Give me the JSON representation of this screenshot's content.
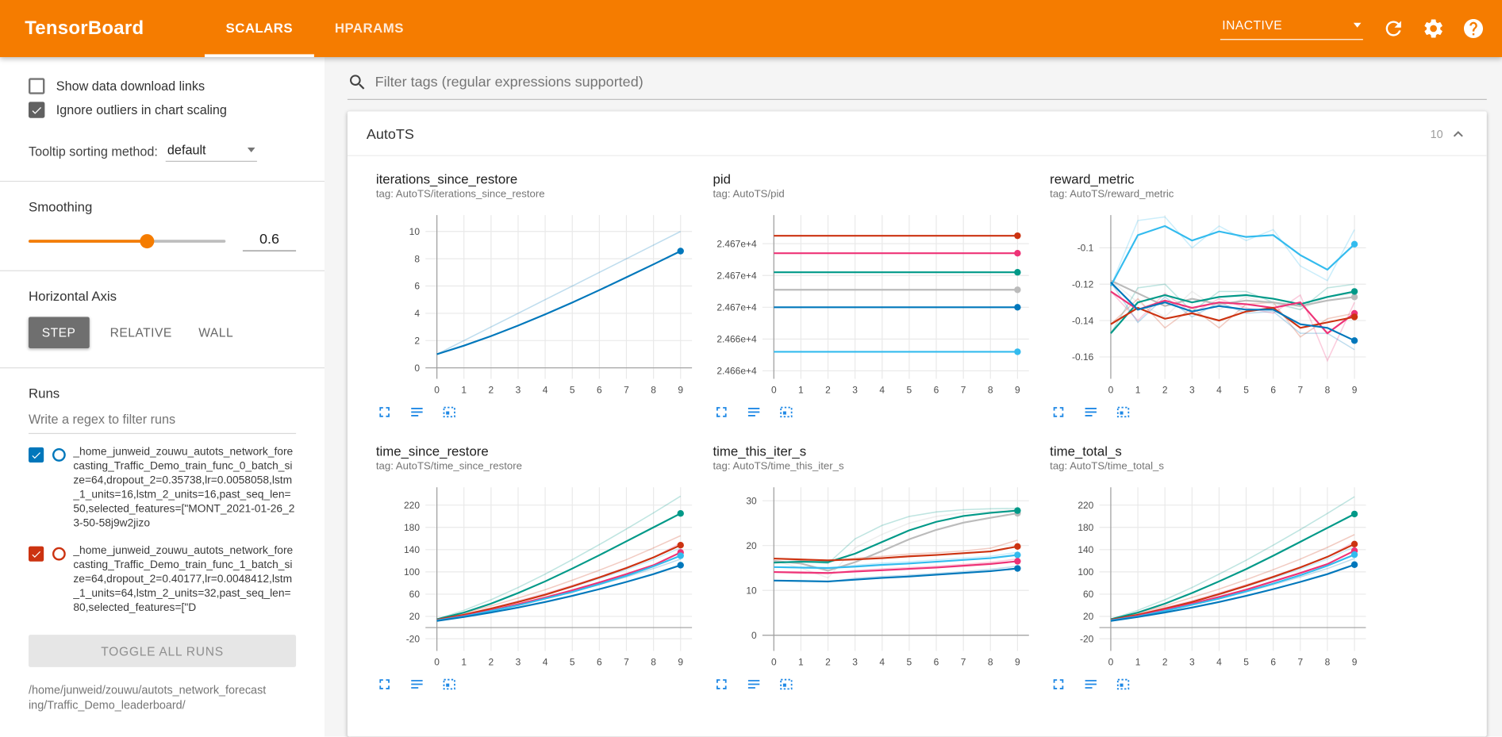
{
  "header": {
    "title": "TensorBoard",
    "tabs": [
      {
        "label": "SCALARS",
        "active": true
      },
      {
        "label": "HPARAMS",
        "active": false
      }
    ],
    "status": "INACTIVE",
    "icons": [
      "refresh-icon",
      "settings-icon",
      "help-icon"
    ]
  },
  "sidebar": {
    "checkboxes": [
      {
        "label": "Show data download links",
        "checked": false
      },
      {
        "label": "Ignore outliers in chart scaling",
        "checked": true
      }
    ],
    "tooltip_sort": {
      "label": "Tooltip sorting method:",
      "value": "default"
    },
    "smoothing": {
      "label": "Smoothing",
      "value": 0.6
    },
    "horizontal_axis": {
      "label": "Horizontal Axis",
      "options": [
        "STEP",
        "RELATIVE",
        "WALL"
      ],
      "selected": "STEP"
    },
    "runs": {
      "label": "Runs",
      "filter_placeholder": "Write a regex to filter runs",
      "items": [
        {
          "checked": true,
          "color": "#0077bb",
          "text": "_home_junweid_zouwu_autots_network_forecasting_Traffic_Demo_train_func_0_batch_size=64,dropout_2=0.35738,lr=0.0058058,lstm_1_units=16,lstm_2_units=16,past_seq_len=50,selected_features=[\"MONT_2021-01-26_23-50-58j9w2jizo"
        },
        {
          "checked": true,
          "color": "#cc3311",
          "text": "_home_junweid_zouwu_autots_network_forecasting_Traffic_Demo_train_func_1_batch_size=64,dropout_2=0.40177,lr=0.0048412,lstm_1_units=64,lstm_2_units=32,past_seq_len=80,selected_features=[\"D"
        }
      ],
      "toggle_all": "TOGGLE ALL RUNS",
      "path": "/home/junweid/zouwu/autots_network_forecasting/Traffic_Demo_leaderboard/"
    }
  },
  "main": {
    "filter_placeholder": "Filter tags (regular expressions supported)",
    "card": {
      "title": "AutoTS",
      "count": "10",
      "collapse_icon": "chevron-up-icon"
    },
    "chart_toolbar": {
      "icons": [
        "fullscreen-icon",
        "data-table-icon",
        "fit-domain-icon"
      ]
    }
  },
  "colors": {
    "header_bg": "#f57c00",
    "accent": "#f57c00",
    "chart_icon_blue": "#1e88e5",
    "run_palette": [
      "#cc3311",
      "#ee3377",
      "#009988",
      "#bbbbbb",
      "#0077bb",
      "#33bbee"
    ]
  },
  "chart_data": [
    {
      "type": "line",
      "name": "iterations_since_restore",
      "tag_label": "tag: AutoTS/iterations_since_restore",
      "x": [
        0,
        1,
        2,
        3,
        4,
        5,
        6,
        7,
        8,
        9
      ],
      "ylim": [
        -0.8,
        11.2
      ],
      "yticks": {
        "values": [
          0,
          2,
          4,
          6,
          8,
          10
        ],
        "labels": [
          "0",
          "2",
          "4",
          "6",
          "8",
          "10"
        ]
      },
      "series": [
        {
          "color": "#0077bb",
          "values": [
            1,
            1.63,
            2.33,
            3.1,
            3.92,
            4.79,
            5.7,
            6.64,
            7.59,
            8.56
          ],
          "raw": [
            1,
            2,
            3,
            4,
            5,
            6,
            7,
            8,
            9,
            10
          ]
        }
      ]
    },
    {
      "type": "line",
      "name": "pid",
      "tag_label": "tag: AutoTS/pid",
      "x": [
        0,
        1,
        2,
        3,
        4,
        5,
        6,
        7,
        8,
        9
      ],
      "ylim": [
        24661.5,
        24671.8
      ],
      "yticks": {
        "values": [
          24670,
          24668,
          24666,
          24664,
          24662
        ],
        "labels": [
          "2.467e+4",
          "2.467e+4",
          "2.467e+4",
          "2.466e+4",
          "2.466e+4"
        ]
      },
      "series": [
        {
          "color": "#cc3311",
          "const": 24670.5
        },
        {
          "color": "#ee3377",
          "const": 24669.4
        },
        {
          "color": "#009988",
          "const": 24668.2
        },
        {
          "color": "#bbbbbb",
          "const": 24667.1
        },
        {
          "color": "#0077bb",
          "const": 24666.0
        },
        {
          "color": "#33bbee",
          "const": 24663.2
        }
      ]
    },
    {
      "type": "line",
      "name": "reward_metric",
      "tag_label": "tag: AutoTS/reward_metric",
      "x": [
        0,
        1,
        2,
        3,
        4,
        5,
        6,
        7,
        8,
        9
      ],
      "ylim": [
        -0.172,
        -0.082
      ],
      "yticks": {
        "values": [
          -0.1,
          -0.12,
          -0.14,
          -0.16
        ],
        "labels": [
          "-0.1",
          "-0.12",
          "-0.14",
          "-0.16"
        ]
      },
      "series": [
        {
          "color": "#bbbbbb",
          "values": [
            -0.118,
            -0.125,
            -0.132,
            -0.128,
            -0.131,
            -0.129,
            -0.13,
            -0.132,
            -0.129,
            -0.127
          ],
          "raw": [
            -0.118,
            -0.13,
            -0.138,
            -0.124,
            -0.134,
            -0.127,
            -0.131,
            -0.134,
            -0.127,
            -0.125
          ]
        },
        {
          "color": "#33bbee",
          "values": [
            -0.121,
            -0.093,
            -0.088,
            -0.096,
            -0.091,
            -0.094,
            -0.093,
            -0.104,
            -0.112,
            -0.098
          ],
          "raw": [
            -0.121,
            -0.085,
            -0.083,
            -0.1,
            -0.088,
            -0.096,
            -0.09,
            -0.11,
            -0.118,
            -0.09
          ]
        },
        {
          "color": "#009988",
          "values": [
            -0.147,
            -0.13,
            -0.126,
            -0.13,
            -0.127,
            -0.126,
            -0.128,
            -0.131,
            -0.127,
            -0.124
          ],
          "raw": [
            -0.147,
            -0.122,
            -0.12,
            -0.135,
            -0.124,
            -0.124,
            -0.13,
            -0.134,
            -0.122,
            -0.12
          ]
        },
        {
          "color": "#ee3377",
          "values": [
            -0.124,
            -0.134,
            -0.129,
            -0.133,
            -0.13,
            -0.131,
            -0.133,
            -0.13,
            -0.147,
            -0.136
          ],
          "raw": [
            -0.124,
            -0.14,
            -0.125,
            -0.136,
            -0.128,
            -0.133,
            -0.136,
            -0.126,
            -0.162,
            -0.13
          ]
        },
        {
          "color": "#cc3311",
          "values": [
            -0.142,
            -0.133,
            -0.139,
            -0.136,
            -0.14,
            -0.135,
            -0.133,
            -0.144,
            -0.141,
            -0.138
          ],
          "raw": [
            -0.142,
            -0.128,
            -0.144,
            -0.133,
            -0.144,
            -0.131,
            -0.13,
            -0.149,
            -0.139,
            -0.136
          ]
        },
        {
          "color": "#0077bb",
          "values": [
            -0.119,
            -0.134,
            -0.13,
            -0.135,
            -0.132,
            -0.134,
            -0.134,
            -0.142,
            -0.144,
            -0.151
          ],
          "raw": [
            -0.119,
            -0.141,
            -0.127,
            -0.138,
            -0.13,
            -0.136,
            -0.135,
            -0.147,
            -0.147,
            -0.156
          ]
        }
      ]
    },
    {
      "type": "line",
      "name": "time_since_restore",
      "tag_label": "tag: AutoTS/time_since_restore",
      "x": [
        0,
        1,
        2,
        3,
        4,
        5,
        6,
        7,
        8,
        9
      ],
      "ylim": [
        -42,
        252
      ],
      "yticks": {
        "values": [
          220,
          180,
          140,
          100,
          60,
          20,
          -20
        ],
        "labels": [
          "220",
          "180",
          "140",
          "100",
          "60",
          "20",
          "-20"
        ]
      },
      "series": [
        {
          "color": "#009988",
          "values": [
            15,
            27,
            43,
            62,
            83,
            106,
            130,
            155,
            180,
            205
          ],
          "raw": [
            15,
            31,
            50,
            72,
            96,
            122,
            149,
            177,
            206,
            236
          ]
        },
        {
          "color": "#cc3311",
          "values": [
            14,
            23,
            34,
            46,
            59,
            74,
            90,
            107,
            126,
            148
          ],
          "raw": [
            14,
            26,
            39,
            53,
            68,
            85,
            103,
            122,
            143,
            165
          ]
        },
        {
          "color": "#ee3377",
          "values": [
            13,
            21,
            31,
            42,
            54,
            67,
            81,
            96,
            112,
            135
          ],
          "raw": [
            13,
            24,
            35,
            48,
            61,
            76,
            91,
            108,
            126,
            152
          ]
        },
        {
          "color": "#33bbee",
          "values": [
            13,
            20,
            30,
            40,
            52,
            64,
            78,
            93,
            110,
            129
          ],
          "raw": [
            13,
            23,
            34,
            46,
            59,
            73,
            88,
            104,
            122,
            143
          ]
        },
        {
          "color": "#0077bb",
          "values": [
            12,
            19,
            27,
            36,
            46,
            57,
            69,
            82,
            96,
            112
          ],
          "raw": [
            12,
            21,
            31,
            41,
            52,
            64,
            77,
            91,
            106,
            123
          ]
        }
      ]
    },
    {
      "type": "line",
      "name": "time_this_iter_s",
      "tag_label": "tag: AutoTS/time_this_iter_s",
      "x": [
        0,
        1,
        2,
        3,
        4,
        5,
        6,
        7,
        8,
        9
      ],
      "ylim": [
        -3.5,
        33
      ],
      "yticks": {
        "values": [
          30,
          20,
          10,
          0
        ],
        "labels": [
          "30",
          "20",
          "10",
          "0"
        ]
      },
      "series": [
        {
          "color": "#bbbbbb",
          "values": [
            16.6,
            16.0,
            14.4,
            16.3,
            18.8,
            21.4,
            23.5,
            25.1,
            26.2,
            27.2
          ],
          "raw": [
            16.6,
            15.0,
            12.8,
            19.5,
            22.5,
            25.0,
            26.5,
            27.3,
            27.6,
            28.0
          ]
        },
        {
          "color": "#009988",
          "values": [
            16.2,
            16.4,
            16.3,
            18.2,
            20.8,
            23.4,
            25.3,
            26.6,
            27.3,
            27.8
          ],
          "raw": [
            16.2,
            16.6,
            16.0,
            21.5,
            24.5,
            26.5,
            27.5,
            28.0,
            28.2,
            28.3
          ]
        },
        {
          "color": "#cc3311",
          "values": [
            17.1,
            16.9,
            16.7,
            16.9,
            17.2,
            17.6,
            17.9,
            18.3,
            18.7,
            19.8
          ],
          "raw": [
            17.1,
            16.7,
            16.4,
            17.2,
            17.6,
            18.1,
            18.4,
            18.8,
            19.4,
            21.2
          ]
        },
        {
          "color": "#33bbee",
          "values": [
            15.2,
            15.1,
            15.0,
            15.3,
            15.7,
            16.0,
            16.4,
            16.8,
            17.2,
            17.9
          ],
          "raw": [
            15.2,
            15.0,
            14.8,
            15.6,
            16.1,
            16.4,
            16.8,
            17.2,
            17.6,
            18.5
          ]
        },
        {
          "color": "#ee3377",
          "values": [
            14.1,
            14.0,
            13.9,
            14.2,
            14.5,
            14.8,
            15.1,
            15.5,
            15.9,
            16.5
          ],
          "raw": [
            14.1,
            13.8,
            13.7,
            14.5,
            14.8,
            15.1,
            15.4,
            15.8,
            16.3,
            17.0
          ]
        },
        {
          "color": "#0077bb",
          "values": [
            12.2,
            12.1,
            12.0,
            12.4,
            12.8,
            13.1,
            13.5,
            13.9,
            14.3,
            14.9
          ],
          "raw": [
            12.2,
            12.0,
            11.9,
            12.7,
            13.1,
            13.4,
            13.8,
            14.2,
            14.7,
            15.4
          ]
        }
      ]
    },
    {
      "type": "line",
      "name": "time_total_s",
      "tag_label": "tag: AutoTS/time_total_s",
      "x": [
        0,
        1,
        2,
        3,
        4,
        5,
        6,
        7,
        8,
        9
      ],
      "ylim": [
        -42,
        252
      ],
      "yticks": {
        "values": [
          220,
          180,
          140,
          100,
          60,
          20,
          -20
        ],
        "labels": [
          "220",
          "180",
          "140",
          "100",
          "60",
          "20",
          "-20"
        ]
      },
      "series": [
        {
          "color": "#009988",
          "values": [
            15,
            27,
            43,
            62,
            83,
            105,
            129,
            154,
            179,
            204
          ],
          "raw": [
            15,
            31,
            50,
            72,
            96,
            121,
            148,
            176,
            205,
            235
          ]
        },
        {
          "color": "#cc3311",
          "values": [
            14,
            23,
            34,
            46,
            60,
            75,
            91,
            108,
            127,
            150
          ],
          "raw": [
            14,
            26,
            39,
            54,
            69,
            86,
            104,
            123,
            144,
            167
          ]
        },
        {
          "color": "#ee3377",
          "values": [
            13,
            21,
            32,
            43,
            55,
            68,
            83,
            98,
            114,
            138
          ],
          "raw": [
            13,
            24,
            36,
            48,
            62,
            77,
            92,
            109,
            127,
            154
          ]
        },
        {
          "color": "#33bbee",
          "values": [
            13,
            20,
            30,
            41,
            52,
            65,
            79,
            94,
            111,
            131
          ],
          "raw": [
            13,
            23,
            34,
            46,
            59,
            74,
            89,
            105,
            123,
            145
          ]
        },
        {
          "color": "#0077bb",
          "values": [
            12,
            19,
            27,
            36,
            46,
            57,
            69,
            82,
            96,
            113
          ],
          "raw": [
            12,
            21,
            31,
            41,
            52,
            64,
            77,
            91,
            106,
            124
          ]
        }
      ]
    }
  ]
}
